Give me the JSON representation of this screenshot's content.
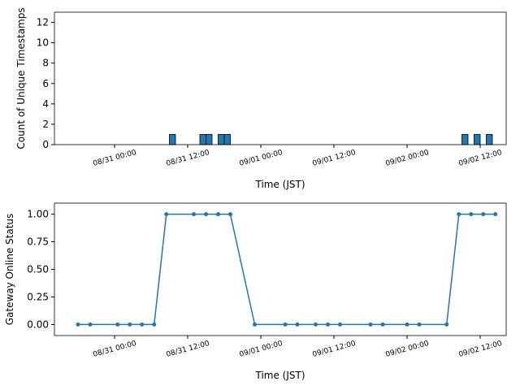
{
  "chart_data": [
    {
      "type": "bar",
      "ylabel": "Count of Unique Timestamps",
      "xlabel": "Time (JST)",
      "color": "#1f77b4",
      "x": [
        "08/31 09:00",
        "08/31 14:00",
        "08/31 15:00",
        "08/31 17:00",
        "08/31 18:00",
        "09/02 09:00",
        "09/02 11:00",
        "09/02 13:00"
      ],
      "values": [
        1,
        1,
        1,
        1,
        1,
        1,
        1,
        1
      ],
      "xlim": [
        "08/30 14:08",
        "09/02 16:16"
      ],
      "xticks": [
        "08/31 00:00",
        "08/31 12:00",
        "09/01 00:00",
        "09/01 12:00",
        "09/02 00:00",
        "09/02 12:00"
      ],
      "ylim": [
        0,
        13
      ],
      "yticks": [
        0,
        2,
        4,
        6,
        8,
        10,
        12
      ]
    },
    {
      "type": "line",
      "ylabel": "Gateway Online Status",
      "xlabel": "Time (JST)",
      "color": "#1f77b4",
      "x": [
        "08/30 18:00",
        "08/30 20:00",
        "08/31 00:30",
        "08/31 02:30",
        "08/31 04:30",
        "08/31 06:30",
        "08/31 08:30",
        "08/31 13:00",
        "08/31 15:00",
        "08/31 17:00",
        "08/31 19:00",
        "08/31 23:00",
        "09/01 04:00",
        "09/01 06:00",
        "09/01 09:00",
        "09/01 11:00",
        "09/01 13:00",
        "09/01 18:00",
        "09/01 20:00",
        "09/02 00:00",
        "09/02 02:00",
        "09/02 06:30",
        "09/02 08:30",
        "09/02 10:30",
        "09/02 12:30",
        "09/02 14:30"
      ],
      "values": [
        0,
        0,
        0,
        0,
        0,
        0,
        1,
        1,
        1,
        1,
        1,
        0,
        0,
        0,
        0,
        0,
        0,
        0,
        0,
        0,
        0,
        0,
        1,
        1,
        1,
        1
      ],
      "xlim": [
        "08/30 14:08",
        "09/02 16:16"
      ],
      "xticks": [
        "08/31 00:00",
        "08/31 12:00",
        "09/01 00:00",
        "09/01 12:00",
        "09/02 00:00",
        "09/02 12:00"
      ],
      "ylim": [
        -0.1,
        1.1
      ],
      "yticks": [
        {
          "value": 0,
          "label": "0.00"
        },
        {
          "value": 0.25,
          "label": "0.25"
        },
        {
          "value": 0.5,
          "label": "0.50"
        },
        {
          "value": 0.75,
          "label": "0.75"
        },
        {
          "value": 1,
          "label": "1.00"
        }
      ]
    }
  ]
}
